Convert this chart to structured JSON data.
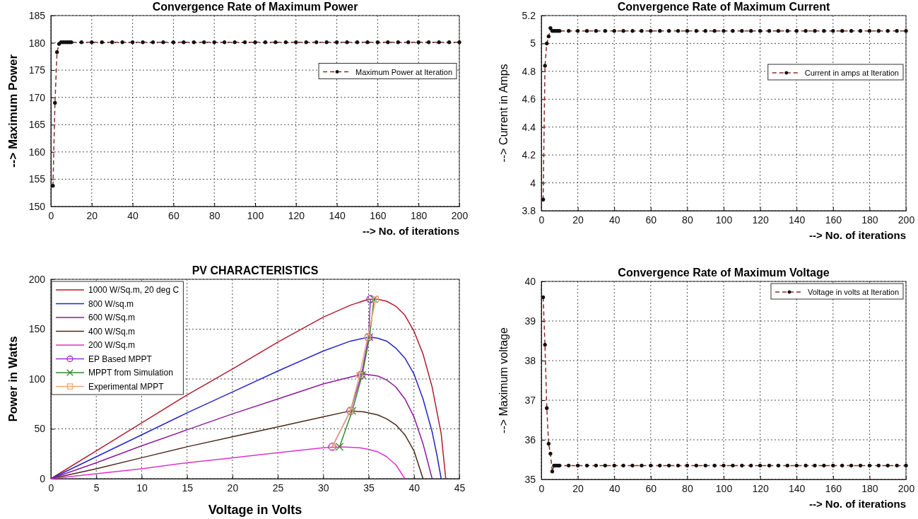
{
  "chart_data": [
    {
      "type": "line",
      "title": "Convergence Rate of Maximum Power",
      "xlabel": "--> No. of iterations",
      "ylabel": "--> Maximum Power",
      "xlim": [
        0,
        200
      ],
      "xticks": [
        0,
        20,
        40,
        60,
        80,
        100,
        120,
        140,
        160,
        180,
        200
      ],
      "ylim": [
        150,
        185
      ],
      "yticks": [
        150,
        155,
        160,
        165,
        170,
        175,
        180,
        185
      ],
      "grid": true,
      "legend": "right",
      "marker": "circle",
      "line_style": "dashed",
      "x": [
        1,
        2,
        3,
        4,
        5,
        6,
        7,
        8,
        9,
        10,
        15,
        20,
        25,
        30,
        35,
        40,
        45,
        50,
        55,
        60,
        65,
        70,
        75,
        80,
        85,
        90,
        95,
        100,
        105,
        110,
        115,
        120,
        125,
        130,
        135,
        140,
        145,
        150,
        155,
        160,
        165,
        170,
        175,
        180,
        185,
        190,
        195,
        200
      ],
      "series": [
        {
          "name": "Maximum Power at Iteration",
          "color": "#8b2a2a",
          "values": [
            153.8,
            169,
            178.3,
            179.8,
            180.1,
            180.1,
            180.1,
            180.1,
            180.1,
            180.1,
            180.1,
            180.1,
            180.1,
            180.1,
            180.1,
            180.1,
            180.1,
            180.1,
            180.1,
            180.1,
            180.1,
            180.1,
            180.1,
            180.1,
            180.1,
            180.1,
            180.1,
            180.1,
            180.1,
            180.1,
            180.1,
            180.1,
            180.1,
            180.1,
            180.1,
            180.1,
            180.1,
            180.1,
            180.1,
            180.1,
            180.1,
            180.1,
            180.1,
            180.1,
            180.1,
            180.1,
            180.1,
            180.1
          ]
        }
      ]
    },
    {
      "type": "line",
      "title": "Convergence Rate of Maximum Current",
      "xlabel": "--> No. of iterations",
      "ylabel": "--> Current in Amps",
      "xlim": [
        0,
        200
      ],
      "xticks": [
        0,
        20,
        40,
        60,
        80,
        100,
        120,
        140,
        160,
        180,
        200
      ],
      "ylim": [
        3.8,
        5.2
      ],
      "yticks": [
        3.8,
        4,
        4.2,
        4.4,
        4.6,
        4.8,
        5,
        5.2
      ],
      "grid": true,
      "legend": "right",
      "marker": "circle",
      "line_style": "dashed",
      "x": [
        1,
        2,
        3,
        4,
        5,
        6,
        7,
        8,
        9,
        10,
        15,
        20,
        25,
        30,
        35,
        40,
        45,
        50,
        55,
        60,
        65,
        70,
        75,
        80,
        85,
        90,
        95,
        100,
        105,
        110,
        115,
        120,
        125,
        130,
        135,
        140,
        145,
        150,
        155,
        160,
        165,
        170,
        175,
        180,
        185,
        190,
        195,
        200
      ],
      "series": [
        {
          "name": "Current in amps at Iteration",
          "color": "#8b2a2a",
          "values": [
            3.88,
            4.84,
            5,
            5.05,
            5.11,
            5.09,
            5.09,
            5.09,
            5.09,
            5.09,
            5.09,
            5.09,
            5.09,
            5.09,
            5.09,
            5.09,
            5.09,
            5.09,
            5.09,
            5.09,
            5.09,
            5.09,
            5.09,
            5.09,
            5.09,
            5.09,
            5.09,
            5.09,
            5.09,
            5.09,
            5.09,
            5.09,
            5.09,
            5.09,
            5.09,
            5.09,
            5.09,
            5.09,
            5.09,
            5.09,
            5.09,
            5.09,
            5.09,
            5.09,
            5.09,
            5.09,
            5.09,
            5.09
          ]
        }
      ]
    },
    {
      "type": "line",
      "title": "PV CHARACTERISTICS",
      "xlabel": "Voltage in Volts",
      "ylabel": "Power in Watts",
      "xlim": [
        0,
        45
      ],
      "xticks": [
        0,
        5,
        10,
        15,
        20,
        25,
        30,
        35,
        40,
        45
      ],
      "ylim": [
        0,
        200
      ],
      "yticks": [
        0,
        50,
        100,
        150,
        200
      ],
      "grid": true,
      "legend": "top left",
      "line_style": "solid",
      "series": [
        {
          "name": "1000 W/Sq.m, 20 deg C",
          "color": "#b01c2e",
          "marker": "none",
          "x": [
            0,
            5,
            10,
            15,
            20,
            25,
            30,
            33,
            35,
            36,
            37,
            38,
            39,
            40,
            41,
            42,
            43,
            43.5
          ],
          "values": [
            0,
            28,
            56,
            84,
            110,
            137,
            162,
            174,
            180,
            180,
            178,
            173,
            164,
            148,
            125,
            92,
            45,
            0
          ]
        },
        {
          "name": "800 W/sq.m",
          "color": "#2424cc",
          "marker": "none",
          "x": [
            0,
            5,
            10,
            15,
            20,
            25,
            30,
            33,
            35,
            36,
            37,
            38,
            39,
            40,
            41,
            42,
            42.5,
            43
          ],
          "values": [
            0,
            22,
            44,
            66,
            87,
            108,
            128,
            138,
            142,
            141,
            138,
            131,
            121,
            105,
            80,
            47,
            25,
            0
          ]
        },
        {
          "name": "600 W/Sq.m",
          "color": "#8b1a9b",
          "marker": "none",
          "x": [
            0,
            5,
            10,
            15,
            20,
            25,
            30,
            33,
            34.5,
            36,
            37,
            38,
            39,
            40,
            41,
            42
          ],
          "values": [
            0,
            16,
            33,
            49,
            65,
            80,
            95,
            102,
            105,
            103,
            99,
            92,
            80,
            62,
            35,
            0
          ]
        },
        {
          "name": "400 W/Sq.m",
          "color": "#4a2a1a",
          "marker": "none",
          "x": [
            0,
            5,
            10,
            15,
            20,
            25,
            30,
            33,
            34.5,
            36,
            37,
            38,
            39,
            40,
            41
          ],
          "values": [
            0,
            10,
            21,
            32,
            42,
            52,
            62,
            68,
            67,
            64,
            60,
            54,
            44,
            28,
            0
          ]
        },
        {
          "name": "200 W/Sq.m",
          "color": "#dd33cc",
          "marker": "none",
          "x": [
            0,
            5,
            10,
            15,
            20,
            25,
            30,
            32,
            34,
            35,
            36,
            37,
            38,
            39
          ],
          "values": [
            0,
            5,
            10,
            16,
            21,
            26,
            31,
            32,
            31,
            29.5,
            27,
            22,
            14,
            0
          ]
        },
        {
          "name": "EP Based MPPT",
          "color": "#9933cc",
          "marker": "circle",
          "x": [
            31,
            33,
            34.2,
            35,
            35.2
          ],
          "values": [
            32,
            68,
            104,
            142,
            180
          ]
        },
        {
          "name": "MPPT from Simulation",
          "color": "#338833",
          "marker": "cross",
          "x": [
            31.8,
            33.2,
            34.3,
            35.1,
            35.6
          ],
          "values": [
            32,
            68,
            104,
            142,
            180
          ]
        },
        {
          "name": "Experimental MPPT",
          "color": "#f0a878",
          "marker": "square",
          "x": [
            31,
            33,
            34,
            34.9,
            35.8
          ],
          "values": [
            32,
            68,
            104,
            142,
            180
          ]
        }
      ]
    },
    {
      "type": "line",
      "title": "Convergence Rate of Maximum Voltage",
      "xlabel": "--> No. of iterations",
      "ylabel": "--> Maximum voltage",
      "xlim": [
        0,
        200
      ],
      "xticks": [
        0,
        20,
        40,
        60,
        80,
        100,
        120,
        140,
        160,
        180,
        200
      ],
      "ylim": [
        35,
        40
      ],
      "yticks": [
        35,
        36,
        37,
        38,
        39,
        40
      ],
      "grid": true,
      "legend": "top right",
      "marker": "circle",
      "line_style": "dashed",
      "x": [
        1,
        2,
        3,
        4,
        5,
        6,
        7,
        8,
        9,
        10,
        15,
        20,
        25,
        30,
        35,
        40,
        45,
        50,
        55,
        60,
        65,
        70,
        75,
        80,
        85,
        90,
        95,
        100,
        105,
        110,
        115,
        120,
        125,
        130,
        135,
        140,
        145,
        150,
        155,
        160,
        165,
        170,
        175,
        180,
        185,
        190,
        195,
        200
      ],
      "series": [
        {
          "name": "Voltage in volts at Iteration",
          "color": "#8b2a2a",
          "values": [
            39.6,
            38.4,
            36.8,
            35.9,
            35.65,
            35.2,
            35.35,
            35.35,
            35.35,
            35.35,
            35.35,
            35.35,
            35.35,
            35.35,
            35.35,
            35.35,
            35.35,
            35.35,
            35.35,
            35.35,
            35.35,
            35.35,
            35.35,
            35.35,
            35.35,
            35.35,
            35.35,
            35.35,
            35.35,
            35.35,
            35.35,
            35.35,
            35.35,
            35.35,
            35.35,
            35.35,
            35.35,
            35.35,
            35.35,
            35.35,
            35.35,
            35.35,
            35.35,
            35.35,
            35.35,
            35.35,
            35.35,
            35.35
          ]
        }
      ]
    }
  ]
}
